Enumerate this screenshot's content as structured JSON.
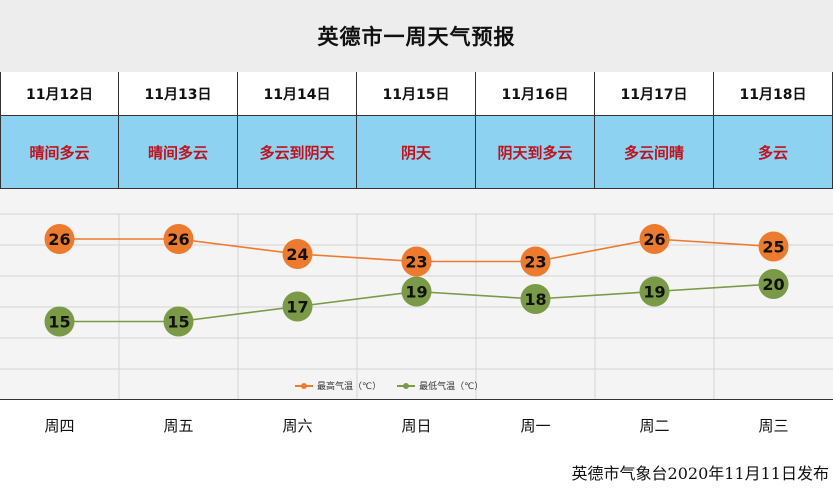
{
  "header": {
    "title": "英德市一周天气预报"
  },
  "days": [
    {
      "date": "11月12日",
      "weather": "晴间多云",
      "weekday": "周四"
    },
    {
      "date": "11月13日",
      "weather": "晴间多云",
      "weekday": "周五"
    },
    {
      "date": "11月14日",
      "weather": "多云到阴天",
      "weekday": "周六"
    },
    {
      "date": "11月15日",
      "weather": "阴天",
      "weekday": "周日"
    },
    {
      "date": "11月16日",
      "weather": "阴天到多云",
      "weekday": "周一"
    },
    {
      "date": "11月17日",
      "weather": "多云间晴",
      "weekday": "周二"
    },
    {
      "date": "11月18日",
      "weather": "多云",
      "weekday": "周三"
    }
  ],
  "chart_data": {
    "type": "line",
    "categories": [
      "周四",
      "周五",
      "周六",
      "周日",
      "周一",
      "周二",
      "周三"
    ],
    "series": [
      {
        "name": "最高气温（℃）",
        "color": "#ec7a2f",
        "values": [
          26,
          26,
          24,
          23,
          23,
          26,
          25
        ]
      },
      {
        "name": "最低气温（℃）",
        "color": "#7a9a47",
        "values": [
          15,
          15,
          17,
          19,
          18,
          19,
          20
        ]
      }
    ],
    "ylim": [
      8,
      30
    ],
    "grid": true,
    "legend": "bottom-center"
  },
  "footer": {
    "publisher": "英德市气象台2020年11月11日发布"
  }
}
